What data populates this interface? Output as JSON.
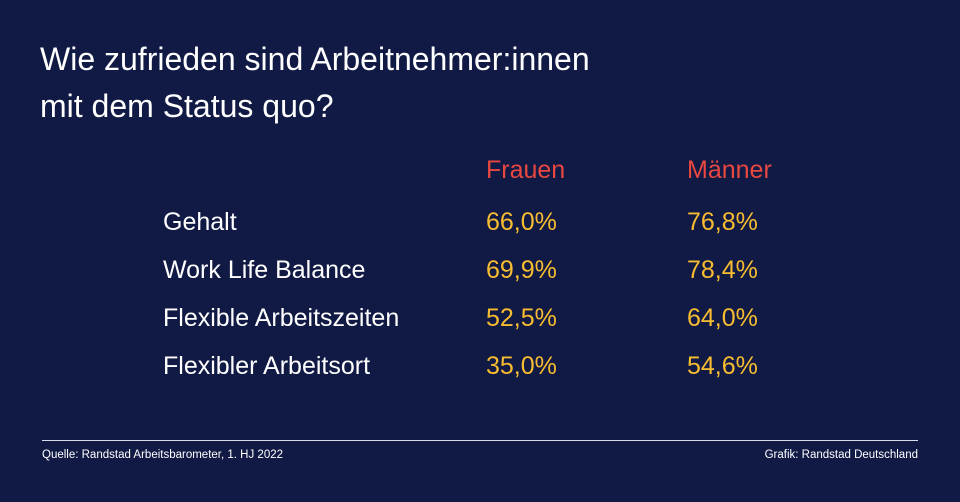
{
  "title_line1": "Wie zufrieden sind Arbeitnehmer:innen",
  "title_line2": "mit dem Status quo?",
  "chart_data": {
    "type": "table",
    "columns": [
      "Frauen",
      "Männer"
    ],
    "rows": [
      {
        "label": "Gehalt",
        "values": [
          "66,0%",
          "76,8%"
        ]
      },
      {
        "label": "Work Life Balance",
        "values": [
          "69,9%",
          "78,4%"
        ]
      },
      {
        "label": "Flexible Arbeitszeiten",
        "values": [
          "52,5%",
          "64,0%"
        ]
      },
      {
        "label": "Flexibler Arbeitsort",
        "values": [
          "35,0%",
          "54,6%"
        ]
      }
    ]
  },
  "footer": {
    "source": "Quelle: Randstad Arbeitsbarometer, 1. HJ 2022",
    "credit": "Grafik: Randstad Deutschland"
  },
  "colors": {
    "background": "#111a45",
    "header": "#e8483f",
    "values": "#f7bc30",
    "text": "#ffffff"
  }
}
